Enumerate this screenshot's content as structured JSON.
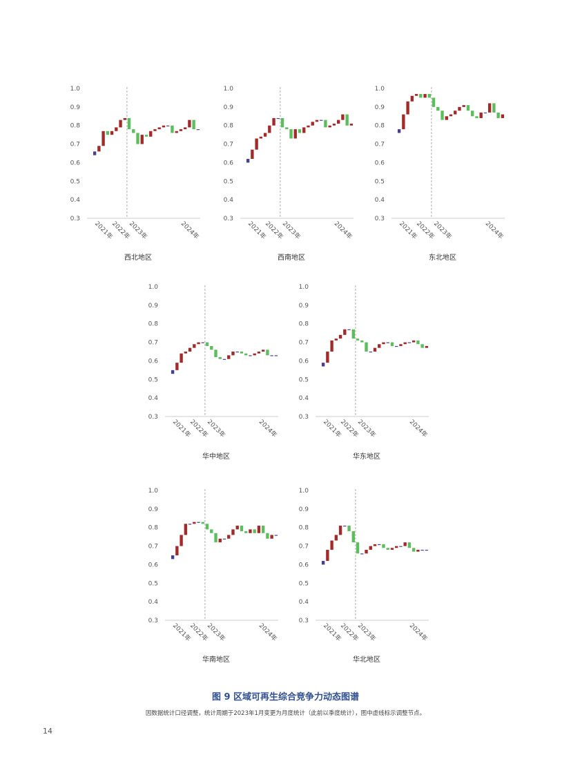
{
  "figure": {
    "title": "图 9 区域可再生综合竞争力动态图谱",
    "note": "因数据统计口径调整，统计周期于2023年1月变更为月度统计（此前以季度统计），图中虚线标示调整节点。",
    "page_number": "14"
  },
  "colors": {
    "up": "#a32a2a",
    "down": "#5cbd5c",
    "flat": "#4a3f8f",
    "axis": "#cccccc",
    "divider": "#999999"
  },
  "chart_data": [
    {
      "type": "waterfall",
      "title": "西北地区",
      "y_ticks": [
        "0.3",
        "0.4",
        "0.5",
        "0.6",
        "0.7",
        "0.8",
        "0.9",
        "1.0"
      ],
      "ylim": [
        0.3,
        1.0
      ],
      "x_labels": [
        {
          "idx": 0,
          "label": "2021年"
        },
        {
          "idx": 4,
          "label": "2022年"
        },
        {
          "idx": 8,
          "label": "2023年"
        },
        {
          "idx": 20,
          "label": "2024年"
        }
      ],
      "divider_after_index": 7,
      "values": [
        0.66,
        0.69,
        0.77,
        0.75,
        0.77,
        0.79,
        0.83,
        0.84,
        0.78,
        0.76,
        0.7,
        0.75,
        0.74,
        0.77,
        0.78,
        0.79,
        0.8,
        0.8,
        0.76,
        0.77,
        0.78,
        0.79,
        0.83,
        0.78,
        0.78
      ]
    },
    {
      "type": "waterfall",
      "title": "西南地区",
      "y_ticks": [
        "0.3",
        "0.4",
        "0.5",
        "0.6",
        "0.7",
        "0.8",
        "0.9",
        "1.0"
      ],
      "ylim": [
        0.3,
        1.0
      ],
      "x_labels": [
        {
          "idx": 0,
          "label": "2021年"
        },
        {
          "idx": 4,
          "label": "2022年"
        },
        {
          "idx": 8,
          "label": "2023年"
        },
        {
          "idx": 20,
          "label": "2024年"
        }
      ],
      "divider_after_index": 7,
      "values": [
        0.62,
        0.67,
        0.73,
        0.74,
        0.76,
        0.8,
        0.84,
        0.84,
        0.79,
        0.78,
        0.73,
        0.78,
        0.76,
        0.79,
        0.8,
        0.82,
        0.83,
        0.83,
        0.79,
        0.8,
        0.81,
        0.83,
        0.86,
        0.8,
        0.81
      ]
    },
    {
      "type": "waterfall",
      "title": "东北地区",
      "y_ticks": [
        "0.3",
        "0.4",
        "0.5",
        "0.6",
        "0.7",
        "0.8",
        "0.9",
        "1.0"
      ],
      "ylim": [
        0.3,
        1.0
      ],
      "x_labels": [
        {
          "idx": 0,
          "label": "2021年"
        },
        {
          "idx": 4,
          "label": "2022年"
        },
        {
          "idx": 8,
          "label": "2023年"
        },
        {
          "idx": 20,
          "label": "2024年"
        }
      ],
      "divider_after_index": 7,
      "values": [
        0.78,
        0.86,
        0.93,
        0.96,
        0.97,
        0.95,
        0.97,
        0.95,
        0.9,
        0.88,
        0.83,
        0.85,
        0.86,
        0.88,
        0.9,
        0.91,
        0.88,
        0.85,
        0.84,
        0.87,
        0.87,
        0.92,
        0.87,
        0.84,
        0.86
      ]
    },
    {
      "type": "waterfall",
      "title": "华中地区",
      "y_ticks": [
        "0.3",
        "0.4",
        "0.5",
        "0.6",
        "0.7",
        "0.8",
        "0.9",
        "1.0"
      ],
      "ylim": [
        0.3,
        1.0
      ],
      "x_labels": [
        {
          "idx": 0,
          "label": "2021年"
        },
        {
          "idx": 4,
          "label": "2022年"
        },
        {
          "idx": 8,
          "label": "2023年"
        },
        {
          "idx": 20,
          "label": "2024年"
        }
      ],
      "divider_after_index": 7,
      "values": [
        0.55,
        0.59,
        0.64,
        0.65,
        0.67,
        0.69,
        0.7,
        0.7,
        0.68,
        0.66,
        0.62,
        0.61,
        0.61,
        0.63,
        0.65,
        0.65,
        0.64,
        0.63,
        0.63,
        0.64,
        0.65,
        0.66,
        0.63,
        0.63,
        0.63
      ]
    },
    {
      "type": "waterfall",
      "title": "华东地区",
      "y_ticks": [
        "0.3",
        "0.4",
        "0.5",
        "0.6",
        "0.7",
        "0.8",
        "0.9",
        "1.0"
      ],
      "ylim": [
        0.3,
        1.0
      ],
      "x_labels": [
        {
          "idx": 0,
          "label": "2021年"
        },
        {
          "idx": 4,
          "label": "2022年"
        },
        {
          "idx": 8,
          "label": "2023年"
        },
        {
          "idx": 20,
          "label": "2024年"
        }
      ],
      "divider_after_index": 7,
      "values": [
        0.59,
        0.65,
        0.71,
        0.72,
        0.74,
        0.77,
        0.77,
        0.72,
        0.71,
        0.7,
        0.65,
        0.65,
        0.67,
        0.69,
        0.7,
        0.7,
        0.68,
        0.68,
        0.69,
        0.7,
        0.7,
        0.71,
        0.69,
        0.67,
        0.68
      ]
    },
    {
      "type": "waterfall",
      "title": "华南地区",
      "y_ticks": [
        "0.3",
        "0.4",
        "0.5",
        "0.6",
        "0.7",
        "0.8",
        "0.9",
        "1.0"
      ],
      "ylim": [
        0.3,
        1.0
      ],
      "x_labels": [
        {
          "idx": 0,
          "label": "2021年"
        },
        {
          "idx": 4,
          "label": "2022年"
        },
        {
          "idx": 8,
          "label": "2023年"
        },
        {
          "idx": 20,
          "label": "2024年"
        }
      ],
      "divider_after_index": 7,
      "values": [
        0.65,
        0.7,
        0.76,
        0.82,
        0.82,
        0.83,
        0.83,
        0.82,
        0.79,
        0.77,
        0.72,
        0.74,
        0.74,
        0.76,
        0.79,
        0.81,
        0.78,
        0.77,
        0.79,
        0.77,
        0.81,
        0.77,
        0.74,
        0.76,
        0.76
      ]
    },
    {
      "type": "waterfall",
      "title": "华北地区",
      "y_ticks": [
        "0.3",
        "0.4",
        "0.5",
        "0.6",
        "0.7",
        "0.8",
        "0.9",
        "1.0"
      ],
      "ylim": [
        0.3,
        1.0
      ],
      "x_labels": [
        {
          "idx": 0,
          "label": "2021年"
        },
        {
          "idx": 4,
          "label": "2022年"
        },
        {
          "idx": 8,
          "label": "2023年"
        },
        {
          "idx": 20,
          "label": "2024年"
        }
      ],
      "divider_after_index": 7,
      "values": [
        0.62,
        0.68,
        0.73,
        0.76,
        0.81,
        0.81,
        0.78,
        0.72,
        0.66,
        0.66,
        0.68,
        0.7,
        0.71,
        0.71,
        0.69,
        0.68,
        0.69,
        0.7,
        0.7,
        0.72,
        0.69,
        0.67,
        0.68,
        0.68,
        0.68
      ]
    }
  ]
}
